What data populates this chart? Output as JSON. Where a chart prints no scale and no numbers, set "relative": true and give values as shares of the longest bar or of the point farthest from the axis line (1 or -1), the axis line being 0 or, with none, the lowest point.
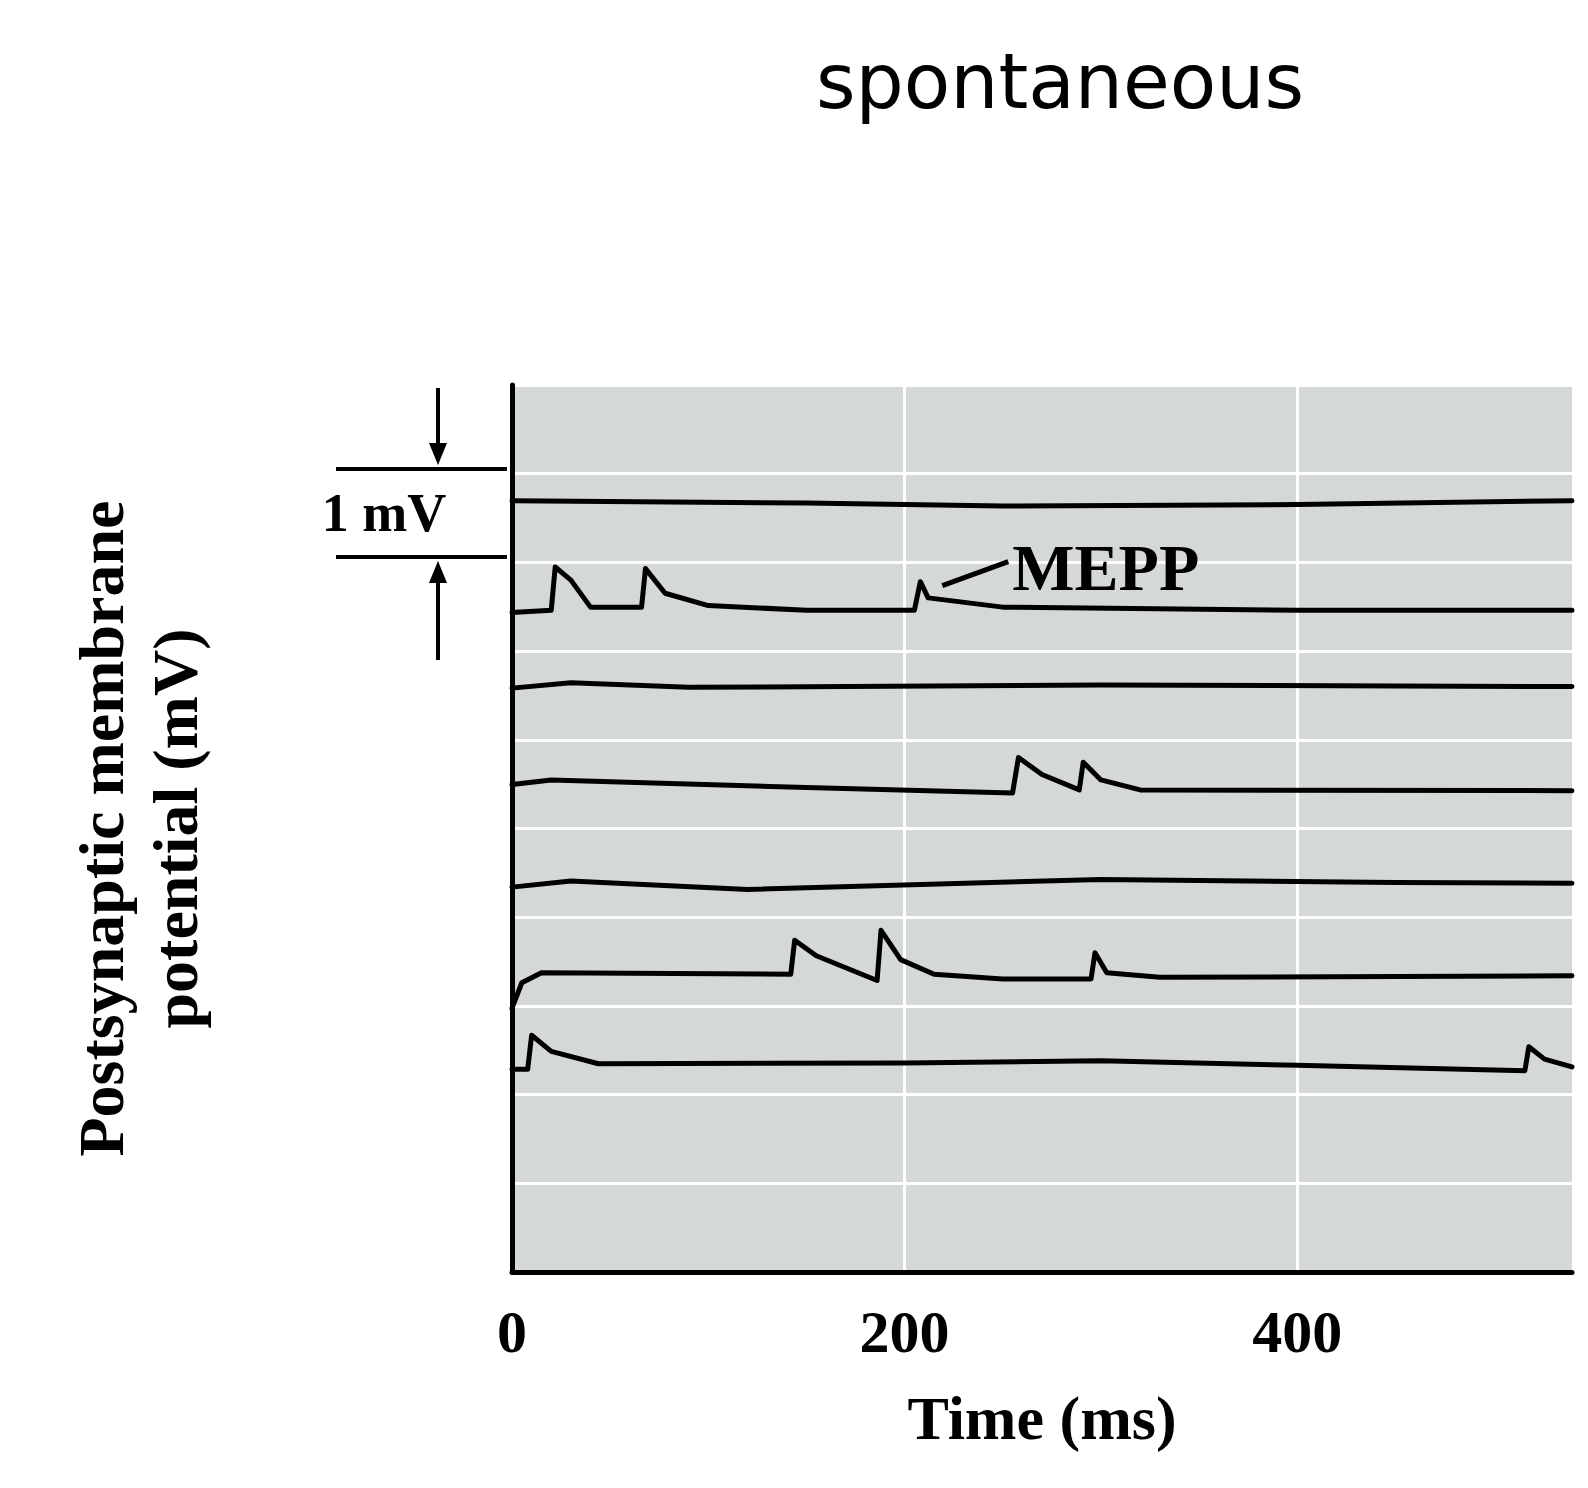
{
  "chart_data": {
    "type": "line",
    "title": "spontaneous",
    "xlabel": "Time (ms)",
    "ylabel": "Postsynaptic membrane potential (mV)",
    "relative": true,
    "xlim": [
      0,
      540
    ],
    "xticks": [
      0,
      200,
      400
    ],
    "grid": true,
    "marker": "none",
    "line_style": "solid",
    "annotations": [
      "1 mV",
      {
        "text": "MEPP",
        "x": 208,
        "y": 0.895
      }
    ],
    "series": [
      {
        "color": "#000000",
        "x": [
          0,
          150,
          250,
          400,
          540
        ],
        "values": [
          1.0,
          0.997,
          0.993,
          0.995,
          1.0
        ]
      },
      {
        "color": "#000000",
        "x": [
          0,
          20,
          22,
          30,
          40,
          66,
          68,
          78,
          100,
          150,
          205,
          208,
          212,
          250,
          400,
          540
        ],
        "values": [
          0.855,
          0.858,
          0.914,
          0.897,
          0.862,
          0.862,
          0.912,
          0.88,
          0.864,
          0.858,
          0.858,
          0.895,
          0.874,
          0.862,
          0.858,
          0.858
        ]
      },
      {
        "color": "#000000",
        "x": [
          0,
          30,
          90,
          300,
          540
        ],
        "values": [
          0.757,
          0.764,
          0.758,
          0.761,
          0.759
        ]
      },
      {
        "color": "#000000",
        "x": [
          0,
          20,
          150,
          255,
          258,
          270,
          289,
          291,
          300,
          320,
          540
        ],
        "values": [
          0.632,
          0.638,
          0.628,
          0.621,
          0.667,
          0.645,
          0.625,
          0.661,
          0.638,
          0.625,
          0.624
        ]
      },
      {
        "color": "#000000",
        "x": [
          0,
          30,
          120,
          300,
          450,
          540
        ],
        "values": [
          0.499,
          0.507,
          0.496,
          0.509,
          0.505,
          0.504
        ]
      },
      {
        "color": "#000000",
        "x": [
          0,
          5,
          15,
          142,
          144,
          155,
          186,
          188,
          198,
          215,
          250,
          295,
          297,
          303,
          330,
          540
        ],
        "values": [
          0.342,
          0.375,
          0.388,
          0.386,
          0.43,
          0.41,
          0.378,
          0.443,
          0.405,
          0.386,
          0.38,
          0.38,
          0.414,
          0.388,
          0.382,
          0.384
        ]
      },
      {
        "color": "#000000",
        "x": [
          0,
          8,
          10,
          20,
          44,
          200,
          300,
          400,
          516,
          518,
          526,
          540
        ],
        "values": [
          0.263,
          0.263,
          0.307,
          0.286,
          0.27,
          0.271,
          0.274,
          0.268,
          0.261,
          0.292,
          0.276,
          0.266
        ]
      }
    ]
  }
}
